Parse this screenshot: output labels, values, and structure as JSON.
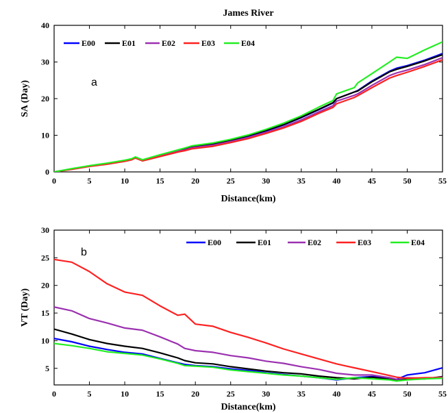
{
  "chart_data": [
    {
      "type": "line",
      "title": "James River",
      "panel_label": "a",
      "xlabel": "Distance(km)",
      "ylabel": "SA (Day)",
      "xlim": [
        0,
        55
      ],
      "ylim": [
        0,
        40
      ],
      "xticks": [
        0,
        5,
        10,
        15,
        20,
        25,
        30,
        35,
        40,
        45,
        50,
        55
      ],
      "yticks": [
        0,
        10,
        20,
        30,
        40
      ],
      "legend": "top-left",
      "x": [
        0,
        2.5,
        5,
        7.5,
        10,
        11,
        11.5,
        12.5,
        15,
        17.5,
        18.5,
        19.5,
        22.5,
        25,
        27.5,
        30,
        32.5,
        35,
        37.5,
        39.5,
        40,
        42.5,
        43,
        45,
        47.5,
        48.5,
        50,
        52.5,
        55
      ],
      "series": [
        {
          "name": "E00",
          "color": "#0000ff",
          "values": [
            0,
            0.8,
            1.6,
            2.3,
            3.1,
            3.5,
            4.0,
            3.2,
            4.5,
            5.8,
            6.2,
            6.8,
            7.6,
            8.6,
            9.8,
            11.2,
            12.8,
            14.8,
            17.0,
            18.8,
            20.0,
            21.8,
            22.2,
            24.8,
            27.5,
            28.3,
            29.0,
            30.5,
            32.3
          ]
        },
        {
          "name": "E01",
          "color": "#000000",
          "values": [
            0,
            0.8,
            1.6,
            2.3,
            3.1,
            3.5,
            4.0,
            3.2,
            4.6,
            5.9,
            6.3,
            6.9,
            7.7,
            8.7,
            9.9,
            11.3,
            12.9,
            14.9,
            17.1,
            18.9,
            20.0,
            21.8,
            22.1,
            24.6,
            27.3,
            28.0,
            28.8,
            30.3,
            32.0
          ]
        },
        {
          "name": "E02",
          "color": "#9b30b0",
          "values": [
            0,
            0.8,
            1.6,
            2.2,
            3.0,
            3.4,
            3.9,
            3.1,
            4.4,
            5.6,
            6.0,
            6.6,
            7.3,
            8.3,
            9.4,
            10.8,
            12.3,
            14.2,
            16.4,
            18.1,
            19.3,
            20.9,
            21.3,
            23.6,
            26.3,
            27.0,
            27.8,
            29.3,
            31.2
          ]
        },
        {
          "name": "E03",
          "color": "#ff2020",
          "values": [
            0,
            0.7,
            1.5,
            2.1,
            2.9,
            3.3,
            3.8,
            3.0,
            4.2,
            5.4,
            5.8,
            6.3,
            7.0,
            8.0,
            9.1,
            10.5,
            12.0,
            13.8,
            16.0,
            17.6,
            18.6,
            20.3,
            20.8,
            23.0,
            25.6,
            26.3,
            27.2,
            28.8,
            30.6
          ]
        },
        {
          "name": "E04",
          "color": "#22ee22",
          "values": [
            0,
            0.9,
            1.7,
            2.4,
            3.2,
            3.6,
            4.1,
            3.3,
            4.7,
            6.0,
            6.5,
            7.1,
            7.9,
            8.9,
            10.1,
            11.6,
            13.3,
            15.3,
            17.7,
            19.5,
            21.3,
            23.0,
            24.3,
            26.8,
            30.0,
            31.3,
            31.0,
            33.3,
            35.5
          ]
        }
      ]
    },
    {
      "type": "line",
      "panel_label": "b",
      "xlabel": "Distance(km)",
      "ylabel": "VT (Day)",
      "xlim": [
        0,
        55
      ],
      "ylim": [
        2,
        30
      ],
      "xticks": [
        0,
        5,
        10,
        15,
        20,
        25,
        30,
        35,
        40,
        45,
        50,
        55
      ],
      "yticks": [
        5,
        10,
        15,
        20,
        25,
        30
      ],
      "legend": "top-right",
      "x": [
        0,
        2.5,
        5,
        7.5,
        10,
        12.5,
        15,
        17.5,
        18.5,
        20,
        22.5,
        25,
        27.5,
        30,
        32.5,
        35,
        37.5,
        40,
        42.5,
        45,
        47.5,
        48.5,
        50,
        52.5,
        55
      ],
      "series": [
        {
          "name": "E00",
          "color": "#0000ff",
          "values": [
            10.4,
            9.8,
            9.0,
            8.4,
            7.9,
            7.6,
            6.8,
            6.0,
            5.7,
            5.5,
            5.3,
            4.9,
            4.6,
            4.2,
            3.9,
            3.6,
            3.3,
            2.9,
            3.3,
            3.5,
            3.3,
            3.0,
            3.8,
            4.2,
            5.1
          ]
        },
        {
          "name": "E01",
          "color": "#000000",
          "values": [
            12.1,
            11.2,
            10.2,
            9.5,
            9.0,
            8.6,
            7.8,
            6.9,
            6.4,
            6.0,
            5.8,
            5.3,
            4.9,
            4.5,
            4.2,
            4.0,
            3.6,
            3.3,
            3.1,
            3.4,
            3.0,
            2.8,
            3.1,
            3.1,
            3.5
          ]
        },
        {
          "name": "E02",
          "color": "#9b30b0",
          "values": [
            16.1,
            15.4,
            14.0,
            13.2,
            12.3,
            11.9,
            10.7,
            9.4,
            8.6,
            8.2,
            7.9,
            7.3,
            6.9,
            6.3,
            5.9,
            5.3,
            4.8,
            4.1,
            3.8,
            3.8,
            3.3,
            3.0,
            3.3,
            3.2,
            3.4
          ]
        },
        {
          "name": "E03",
          "color": "#ff2020",
          "values": [
            24.7,
            24.2,
            22.5,
            20.3,
            18.8,
            18.2,
            16.3,
            14.6,
            14.8,
            13.0,
            12.6,
            11.5,
            10.6,
            9.6,
            8.5,
            7.6,
            6.7,
            5.8,
            5.1,
            4.4,
            3.7,
            3.4,
            3.2,
            3.3,
            3.3
          ]
        },
        {
          "name": "E04",
          "color": "#22ee22",
          "values": [
            9.5,
            9.1,
            8.6,
            8.0,
            7.7,
            7.4,
            6.7,
            5.9,
            5.5,
            5.4,
            5.2,
            4.7,
            4.4,
            4.1,
            3.8,
            3.6,
            3.3,
            3.0,
            3.3,
            3.1,
            2.9,
            2.7,
            2.9,
            3.1,
            3.2
          ]
        }
      ]
    }
  ]
}
